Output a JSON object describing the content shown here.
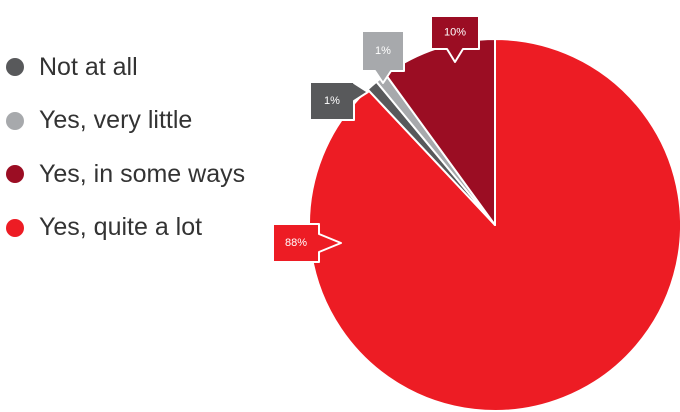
{
  "chart_data": {
    "type": "pie",
    "title": "",
    "legend_position": "left",
    "slices": [
      {
        "label": "Not at all",
        "value": 1,
        "display": "1%",
        "color": "#58595b"
      },
      {
        "label": "Yes, very little",
        "value": 1,
        "display": "1%",
        "color": "#a7a9ac"
      },
      {
        "label": "Yes, in some ways",
        "value": 10,
        "display": "10%",
        "color": "#9b0d23"
      },
      {
        "label": "Yes, quite a lot",
        "value": 88,
        "display": "88%",
        "color": "#ed1c24"
      }
    ]
  }
}
